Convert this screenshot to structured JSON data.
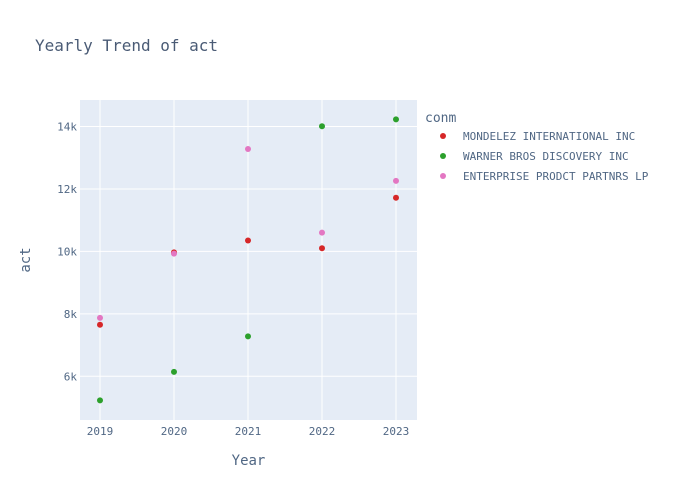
{
  "chart_data": {
    "type": "scatter",
    "title": "Yearly Trend of act",
    "xlabel": "Year",
    "ylabel": "act",
    "x": [
      2019,
      2020,
      2021,
      2022,
      2023
    ],
    "x_tick_labels": [
      "2019",
      "2020",
      "2021",
      "2022",
      "2023"
    ],
    "ylim": [
      4600,
      14850
    ],
    "y_ticks": [
      6000,
      8000,
      10000,
      12000,
      14000
    ],
    "y_tick_labels": [
      "6k",
      "8k",
      "10k",
      "12k",
      "14k"
    ],
    "grid": true,
    "legend": {
      "title": "conm",
      "placement": "right"
    },
    "series": [
      {
        "name": "MONDELEZ INTERNATIONAL INC",
        "color": "#d62728",
        "values": [
          7650,
          9970,
          10350,
          10100,
          11720
        ]
      },
      {
        "name": "WARNER BROS DISCOVERY INC",
        "color": "#2ca02c",
        "values": [
          5230,
          6140,
          7280,
          14010,
          14230
        ]
      },
      {
        "name": "ENTERPRISE PRODCT PARTNRS LP",
        "color": "#e377c2",
        "values": [
          7870,
          9930,
          13280,
          10600,
          12260
        ]
      }
    ]
  }
}
